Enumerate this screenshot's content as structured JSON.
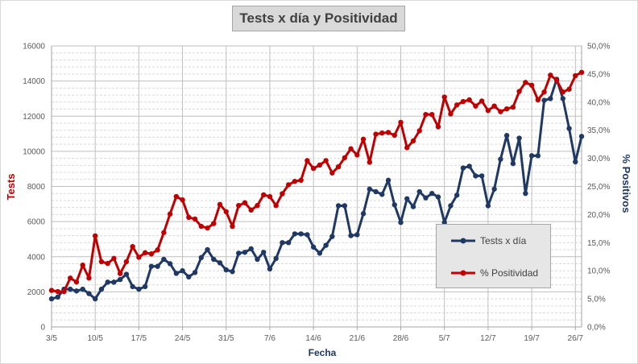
{
  "chart_data": {
    "type": "line",
    "title": "Tests x día y Positividad",
    "xlabel": "Fecha",
    "ylabel_left": "Tests",
    "ylabel_right": "% Positivos",
    "ylim_left": [
      0,
      16000
    ],
    "ylim_right": [
      0,
      50
    ],
    "y_ticks_left": [
      "0",
      "2000",
      "4000",
      "6000",
      "8000",
      "10000",
      "12000",
      "14000",
      "16000"
    ],
    "y_ticks_right": [
      "0,0%",
      "5,0%",
      "10,0%",
      "15,0%",
      "20,0%",
      "25,0%",
      "30,0%",
      "35,0%",
      "40,0%",
      "45,0%",
      "50,0%"
    ],
    "x_tick_labels": [
      "3/5",
      "10/5",
      "17/5",
      "24/5",
      "31/5",
      "7/6",
      "14/6",
      "21/6",
      "28/6",
      "5/7",
      "12/7",
      "19/7",
      "26/7"
    ],
    "x_dates": [
      "3/5",
      "4/5",
      "5/5",
      "6/5",
      "7/5",
      "8/5",
      "9/5",
      "10/5",
      "11/5",
      "12/5",
      "13/5",
      "14/5",
      "15/5",
      "16/5",
      "17/5",
      "18/5",
      "19/5",
      "20/5",
      "21/5",
      "22/5",
      "23/5",
      "24/5",
      "25/5",
      "26/5",
      "27/5",
      "28/5",
      "29/5",
      "30/5",
      "31/5",
      "1/6",
      "2/6",
      "3/6",
      "4/6",
      "5/6",
      "6/6",
      "7/6",
      "8/6",
      "9/6",
      "10/6",
      "11/6",
      "12/6",
      "13/6",
      "14/6",
      "15/6",
      "16/6",
      "17/6",
      "18/6",
      "19/6",
      "20/6",
      "21/6",
      "22/6",
      "23/6",
      "24/6",
      "25/6",
      "26/6",
      "27/6",
      "28/6",
      "29/6",
      "30/6",
      "1/7",
      "2/7",
      "3/7",
      "4/7",
      "5/7",
      "6/7",
      "7/7",
      "8/7",
      "9/7",
      "10/7",
      "11/7",
      "12/7",
      "13/7",
      "14/7",
      "15/7",
      "16/7",
      "17/7",
      "18/7",
      "19/7",
      "20/7",
      "21/7",
      "22/7",
      "23/7",
      "24/7",
      "25/7",
      "26/7",
      "27/7"
    ],
    "grid": true,
    "legend_position": "bottom-right",
    "series": [
      {
        "name": "Tests x día",
        "axis": "left",
        "color": "#203864",
        "values": [
          1600,
          1700,
          2150,
          2150,
          2050,
          2150,
          1900,
          1600,
          2150,
          2550,
          2550,
          2700,
          3000,
          2300,
          2150,
          2300,
          3450,
          3450,
          3850,
          3600,
          3050,
          3200,
          2850,
          3100,
          3950,
          4400,
          3850,
          3650,
          3250,
          3150,
          4200,
          4250,
          4450,
          3850,
          4250,
          3300,
          3900,
          4800,
          4800,
          5300,
          5300,
          5250,
          4550,
          4200,
          4650,
          5150,
          6900,
          6900,
          5200,
          5250,
          6450,
          7850,
          7700,
          7550,
          8350,
          6950,
          5950,
          7300,
          6850,
          7700,
          7350,
          7600,
          7400,
          5950,
          6900,
          7500,
          9050,
          9150,
          8600,
          8600,
          6900,
          7850,
          9550,
          10900,
          9300,
          10750,
          7600,
          9750,
          9750,
          12900,
          13000,
          14100,
          13000,
          11300,
          9400,
          10850
        ]
      },
      {
        "name": "% Positividad",
        "axis": "right",
        "color": "#c00000",
        "values": [
          6.5,
          6.3,
          6.3,
          8.7,
          8.0,
          11.0,
          8.7,
          16.2,
          11.6,
          11.3,
          12.2,
          9.5,
          11.6,
          14.3,
          12.4,
          13.2,
          13.0,
          13.7,
          16.8,
          20.1,
          23.2,
          22.6,
          19.5,
          19.2,
          17.9,
          17.6,
          18.4,
          21.8,
          20.5,
          17.9,
          21.6,
          22.1,
          20.8,
          21.6,
          23.5,
          23.2,
          21.6,
          23.7,
          25.3,
          25.9,
          26.1,
          29.6,
          28.2,
          28.8,
          29.6,
          27.4,
          28.5,
          30.1,
          31.7,
          30.6,
          33.4,
          29.3,
          34.3,
          34.5,
          34.6,
          34.1,
          36.4,
          31.9,
          33.1,
          34.9,
          37.8,
          37.8,
          35.6,
          40.9,
          37.9,
          39.5,
          40.1,
          40.4,
          39.3,
          40.2,
          38.5,
          39.3,
          38.3,
          38.8,
          39.1,
          41.9,
          43.5,
          43.0,
          40.4,
          41.8,
          44.8,
          43.9,
          41.8,
          42.3,
          44.7,
          45.3
        ]
      }
    ]
  }
}
